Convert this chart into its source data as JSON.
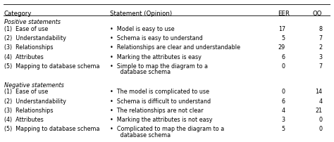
{
  "headers": [
    "Category",
    "Statement (Opinion)",
    "EER",
    "OO"
  ],
  "section1_label": "Positive statements",
  "section2_label": "Negative statements",
  "positive_rows": [
    {
      "category": "(1)  Ease of use",
      "statement_line1": "•  Model is easy to use",
      "statement_line2": "",
      "eer": "17",
      "oo": "8"
    },
    {
      "category": "(2)  Understandability",
      "statement_line1": "•  Schema is easy to understand",
      "statement_line2": "",
      "eer": "5",
      "oo": "7"
    },
    {
      "category": "(3)  Relationships",
      "statement_line1": "•  Relationships are clear and understandable",
      "statement_line2": "",
      "eer": "29",
      "oo": "2"
    },
    {
      "category": "(4)  Attributes",
      "statement_line1": "•  Marking the attributes is easy",
      "statement_line2": "",
      "eer": "6",
      "oo": "3"
    },
    {
      "category": "(5)  Mapping to database schema",
      "statement_line1": "•  Simple to map the diagram to a",
      "statement_line2": "   database schema",
      "eer": "0",
      "oo": "7"
    }
  ],
  "negative_rows": [
    {
      "category": "(1)  Ease of use",
      "statement_line1": "•  The model is complicated to use",
      "statement_line2": "",
      "eer": "0",
      "oo": "14"
    },
    {
      "category": "(2)  Understandability",
      "statement_line1": "•  Schema is difficult to understand",
      "statement_line2": "",
      "eer": "6",
      "oo": "4"
    },
    {
      "category": "(3)  Relationships",
      "statement_line1": "•  The relationships are not clear",
      "statement_line2": "",
      "eer": "4",
      "oo": "21"
    },
    {
      "category": "(4)  Attributes",
      "statement_line1": "•  Marking the attributes is not easy",
      "statement_line2": "",
      "eer": "3",
      "oo": "0"
    },
    {
      "category": "(5)  Mapping to database schema",
      "statement_line1": "•  Complicated to map the diagram to a",
      "statement_line2": "   database schema",
      "eer": "5",
      "oo": "0"
    }
  ],
  "bg_color": "#ffffff",
  "text_color": "#000000",
  "line_color": "#000000",
  "font_size": 5.8,
  "header_font_size": 6.2,
  "section_font_size": 5.9,
  "col_cat": 0.002,
  "col_stmt": 0.325,
  "col_eer": 0.838,
  "col_oo": 0.945
}
